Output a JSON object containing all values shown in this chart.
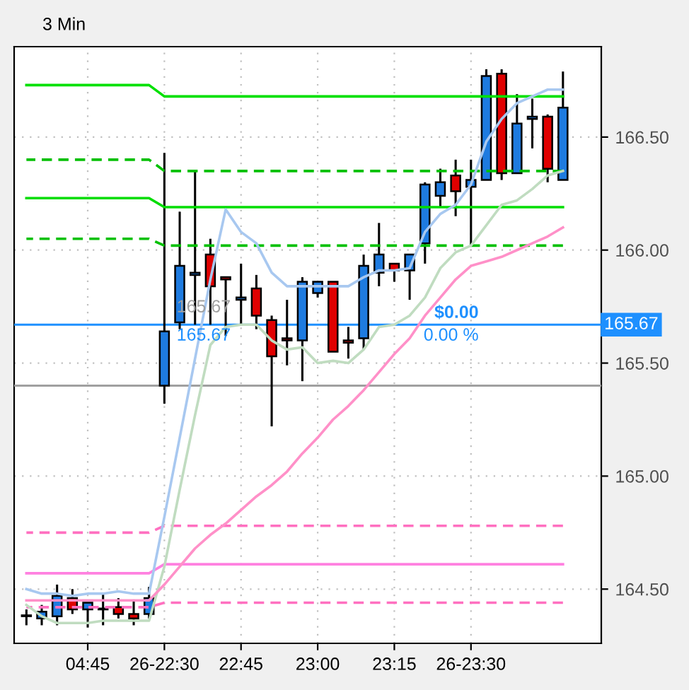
{
  "chart_data": {
    "type": "candlestick",
    "title": "3 Min",
    "categories": [
      null,
      null,
      null,
      null,
      "04:45",
      null,
      null,
      null,
      null,
      "26-22:30",
      null,
      null,
      null,
      null,
      "22:45",
      null,
      null,
      null,
      null,
      "23:00",
      null,
      null,
      null,
      null,
      "23:15",
      null,
      null,
      null,
      null,
      "26-23:30",
      null,
      null,
      null,
      null,
      null,
      null
    ],
    "ohlc": [
      [
        164.38,
        164.41,
        164.34,
        164.38
      ],
      [
        164.37,
        164.43,
        164.34,
        164.4
      ],
      [
        164.38,
        164.52,
        164.34,
        164.47
      ],
      [
        164.46,
        164.5,
        164.39,
        164.41
      ],
      [
        164.41,
        164.44,
        164.33,
        164.44
      ],
      [
        164.41,
        164.48,
        164.34,
        164.41
      ],
      [
        164.42,
        164.46,
        164.37,
        164.39
      ],
      [
        164.39,
        164.45,
        164.34,
        164.37
      ],
      [
        164.39,
        164.51,
        164.37,
        164.46
      ],
      [
        165.4,
        166.43,
        165.32,
        165.64
      ],
      [
        165.68,
        166.17,
        165.65,
        165.93
      ],
      [
        165.89,
        166.35,
        165.67,
        165.9
      ],
      [
        165.98,
        166.05,
        165.67,
        165.84
      ],
      [
        165.88,
        165.88,
        165.62,
        165.87
      ],
      [
        165.78,
        165.94,
        165.67,
        165.79
      ],
      [
        165.83,
        165.89,
        165.65,
        165.71
      ],
      [
        165.69,
        165.71,
        165.22,
        165.53
      ],
      [
        165.61,
        165.78,
        165.49,
        165.6
      ],
      [
        165.6,
        165.88,
        165.42,
        165.86
      ],
      [
        165.81,
        165.86,
        165.79,
        165.86
      ],
      [
        165.86,
        165.86,
        165.55,
        165.55
      ],
      [
        165.6,
        165.66,
        165.52,
        165.59
      ],
      [
        165.61,
        165.98,
        165.56,
        165.93
      ],
      [
        165.9,
        166.12,
        165.84,
        165.98
      ],
      [
        165.94,
        165.94,
        165.86,
        165.91
      ],
      [
        165.91,
        165.98,
        165.78,
        165.98
      ],
      [
        166.03,
        166.3,
        165.94,
        166.29
      ],
      [
        166.24,
        166.36,
        166.19,
        166.3
      ],
      [
        166.33,
        166.4,
        166.15,
        166.26
      ],
      [
        166.28,
        166.4,
        166.02,
        166.31
      ],
      [
        166.31,
        166.8,
        166.31,
        166.77
      ],
      [
        166.78,
        166.8,
        166.31,
        166.34
      ],
      [
        166.34,
        166.69,
        166.34,
        166.56
      ],
      [
        166.58,
        166.67,
        166.45,
        166.59
      ],
      [
        166.59,
        166.6,
        166.3,
        166.36
      ],
      [
        166.31,
        166.79,
        166.31,
        166.63
      ]
    ],
    "colors": [
      "#1e7be0",
      "#1e7be0",
      "#1e7be0",
      "#e00000",
      "#1e7be0",
      "#1e7be0",
      "#e00000",
      "#e00000",
      "#1e7be0",
      "#1e7be0",
      "#1e7be0",
      "#1e7be0",
      "#e00000",
      "#e00000",
      "#1e7be0",
      "#e00000",
      "#e00000",
      "#e00000",
      "#1e7be0",
      "#1e7be0",
      "#e00000",
      "#e00000",
      "#1e7be0",
      "#1e7be0",
      "#e00000",
      "#1e7be0",
      "#1e7be0",
      "#1e7be0",
      "#e00000",
      "#1e7be0",
      "#1e7be0",
      "#e00000",
      "#1e7be0",
      "#1e7be0",
      "#e00000",
      "#1e7be0"
    ],
    "series": [
      {
        "type": "line",
        "color": "#00e000",
        "line_style": "solid",
        "values": [
          166.73,
          166.73,
          166.73,
          166.73,
          166.73,
          166.73,
          166.73,
          166.73,
          166.73,
          166.68,
          166.68,
          166.68,
          166.68,
          166.68,
          166.68,
          166.68,
          166.68,
          166.68,
          166.68,
          166.68,
          166.68,
          166.68,
          166.68,
          166.68,
          166.68,
          166.68,
          166.68,
          166.68,
          166.68,
          166.68,
          166.68,
          166.68,
          166.68,
          166.68,
          166.68,
          166.68
        ]
      },
      {
        "type": "line",
        "color": "#00c000",
        "line_style": "dashed",
        "values": [
          166.4,
          166.4,
          166.4,
          166.4,
          166.4,
          166.4,
          166.4,
          166.4,
          166.4,
          166.35,
          166.35,
          166.35,
          166.35,
          166.35,
          166.35,
          166.35,
          166.35,
          166.35,
          166.35,
          166.35,
          166.35,
          166.35,
          166.35,
          166.35,
          166.35,
          166.35,
          166.35,
          166.35,
          166.35,
          166.35,
          166.35,
          166.35,
          166.35,
          166.35,
          166.35,
          166.35
        ]
      },
      {
        "type": "line",
        "color": "#00dd00",
        "line_style": "solid",
        "values": [
          166.23,
          166.23,
          166.23,
          166.23,
          166.23,
          166.23,
          166.23,
          166.23,
          166.23,
          166.19,
          166.19,
          166.19,
          166.19,
          166.19,
          166.19,
          166.19,
          166.19,
          166.19,
          166.19,
          166.19,
          166.19,
          166.19,
          166.19,
          166.19,
          166.19,
          166.19,
          166.19,
          166.19,
          166.19,
          166.19,
          166.19,
          166.19,
          166.19,
          166.19,
          166.19,
          166.19
        ]
      },
      {
        "type": "line",
        "color": "#00c000",
        "line_style": "dashed",
        "values": [
          166.05,
          166.05,
          166.05,
          166.05,
          166.05,
          166.05,
          166.05,
          166.05,
          166.05,
          166.02,
          166.02,
          166.02,
          166.02,
          166.02,
          166.02,
          166.02,
          166.02,
          166.02,
          166.02,
          166.02,
          166.02,
          166.02,
          166.02,
          166.02,
          166.02,
          166.02,
          166.02,
          166.02,
          166.02,
          166.02,
          166.02,
          166.02,
          166.02,
          166.02,
          166.02,
          166.02
        ]
      },
      {
        "type": "line",
        "color": "#ff70c0",
        "line_style": "dashed",
        "values": [
          164.75,
          164.75,
          164.75,
          164.75,
          164.75,
          164.75,
          164.75,
          164.75,
          164.75,
          164.78,
          164.78,
          164.78,
          164.78,
          164.78,
          164.78,
          164.78,
          164.78,
          164.78,
          164.78,
          164.78,
          164.78,
          164.78,
          164.78,
          164.78,
          164.78,
          164.78,
          164.78,
          164.78,
          164.78,
          164.78,
          164.78,
          164.78,
          164.78,
          164.78,
          164.78,
          164.78
        ]
      },
      {
        "type": "line",
        "color": "#ff80e0",
        "line_style": "solid",
        "values": [
          164.57,
          164.57,
          164.57,
          164.57,
          164.57,
          164.57,
          164.57,
          164.57,
          164.57,
          164.61,
          164.61,
          164.61,
          164.61,
          164.61,
          164.61,
          164.61,
          164.61,
          164.61,
          164.61,
          164.61,
          164.61,
          164.61,
          164.61,
          164.61,
          164.61,
          164.61,
          164.61,
          164.61,
          164.61,
          164.61,
          164.61,
          164.61,
          164.61,
          164.61,
          164.61,
          164.61
        ]
      },
      {
        "type": "line",
        "color": "#ff70c0",
        "line_style": "dashed",
        "values": [
          164.42,
          164.42,
          164.42,
          164.42,
          164.42,
          164.42,
          164.42,
          164.42,
          164.42,
          164.44,
          164.44,
          164.44,
          164.44,
          164.44,
          164.44,
          164.44,
          164.44,
          164.44,
          164.44,
          164.44,
          164.44,
          164.44,
          164.44,
          164.44,
          164.44,
          164.44,
          164.44,
          164.44,
          164.44,
          164.44,
          164.44,
          164.44,
          164.44,
          164.44,
          164.44,
          164.44
        ]
      },
      {
        "type": "line",
        "color": "#a8c8f0",
        "line_style": "solid",
        "values": [
          164.5,
          164.48,
          164.48,
          164.47,
          164.48,
          164.48,
          164.49,
          164.48,
          164.48,
          164.82,
          165.17,
          165.52,
          165.87,
          166.18,
          166.08,
          166.03,
          165.9,
          165.84,
          165.84,
          165.84,
          165.84,
          165.84,
          165.88,
          165.91,
          165.91,
          165.92,
          166.08,
          166.16,
          166.2,
          166.29,
          166.48,
          166.58,
          166.65,
          166.68,
          166.71,
          166.71
        ]
      },
      {
        "type": "line",
        "color": "#c0dcc0",
        "line_style": "solid",
        "values": [
          164.43,
          164.38,
          164.35,
          164.35,
          164.35,
          164.36,
          164.36,
          164.36,
          164.36,
          164.6,
          164.94,
          165.27,
          165.58,
          165.66,
          165.67,
          165.67,
          165.6,
          165.56,
          165.57,
          165.5,
          165.51,
          165.5,
          165.56,
          165.66,
          165.67,
          165.71,
          165.79,
          165.92,
          165.99,
          166.02,
          166.11,
          166.2,
          166.22,
          166.27,
          166.33,
          166.35
        ]
      },
      {
        "type": "line",
        "color": "#ff90c8",
        "line_style": "solid",
        "values": [
          164.45,
          164.45,
          164.45,
          164.45,
          164.45,
          164.45,
          164.45,
          164.45,
          164.45,
          164.52,
          164.6,
          164.68,
          164.74,
          164.79,
          164.85,
          164.91,
          164.96,
          165.02,
          165.1,
          165.17,
          165.25,
          165.31,
          165.38,
          165.46,
          165.54,
          165.61,
          165.71,
          165.79,
          165.87,
          165.93,
          165.95,
          165.97,
          166.0,
          166.03,
          166.06,
          166.1
        ]
      }
    ],
    "ylim": [
      164.26,
      166.9
    ],
    "yticks": [
      {
        "value": 164.5,
        "label": "164.50"
      },
      {
        "value": 165,
        "label": "165.00"
      },
      {
        "value": 165.5,
        "label": "165.50"
      },
      {
        "value": 166,
        "label": "166.00"
      },
      {
        "value": 166.5,
        "label": "166.50"
      }
    ],
    "ref_lines": [
      {
        "axis": "y",
        "value": 165.4,
        "color": "#a0a0a0"
      },
      {
        "axis": "y",
        "value": 165.67,
        "label": "165.67",
        "color": "#1e90ff"
      }
    ],
    "annotations": [
      "165.67",
      "165.67",
      "$0.00",
      "0.00 %"
    ],
    "grid": true,
    "legend": false
  }
}
